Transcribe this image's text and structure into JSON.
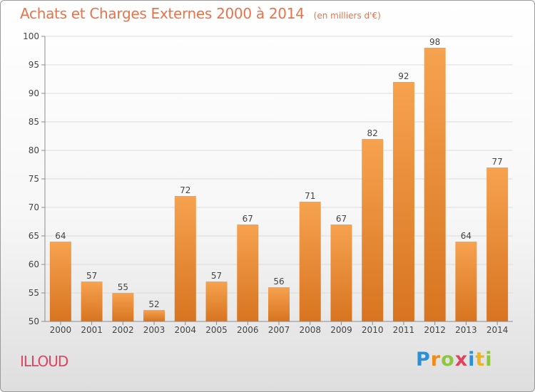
{
  "colors": {
    "title": "#e8734a",
    "commune": "#e0435e",
    "bar_light": "#f6a24f",
    "bar_dark": "#d87420",
    "axis": "#8c8c8c",
    "grid": "#dcdcdc"
  },
  "header": {
    "title": "Achats et Charges Externes 2000 à 2014",
    "unit": "(en milliers d'€)"
  },
  "footer": {
    "commune": "ILLOUD",
    "brand_letters": [
      {
        "ch": "P",
        "color": "#2d8fd6"
      },
      {
        "ch": "r",
        "color": "#f08a1c"
      },
      {
        "ch": "o",
        "color": "#8dc63f"
      },
      {
        "ch": "x",
        "color": "#e0435e"
      },
      {
        "ch": "i",
        "color": "#2d8fd6"
      },
      {
        "ch": "t",
        "color": "#f0b31c"
      },
      {
        "ch": "i",
        "color": "#8dc63f"
      }
    ]
  },
  "chart_data": {
    "type": "bar",
    "title": "Achats et Charges Externes 2000 à 2014",
    "subtitle": "(en milliers d'€)",
    "categories": [
      "2000",
      "2001",
      "2002",
      "2003",
      "2004",
      "2005",
      "2006",
      "2007",
      "2008",
      "2009",
      "2010",
      "2011",
      "2012",
      "2013",
      "2014"
    ],
    "values": [
      64,
      57,
      55,
      52,
      72,
      57,
      67,
      56,
      71,
      67,
      82,
      92,
      98,
      64,
      77
    ],
    "ylim": [
      50,
      100
    ],
    "yticks": [
      50,
      55,
      60,
      65,
      70,
      75,
      80,
      85,
      90,
      95,
      100
    ],
    "grid": true,
    "data_labels": true
  }
}
